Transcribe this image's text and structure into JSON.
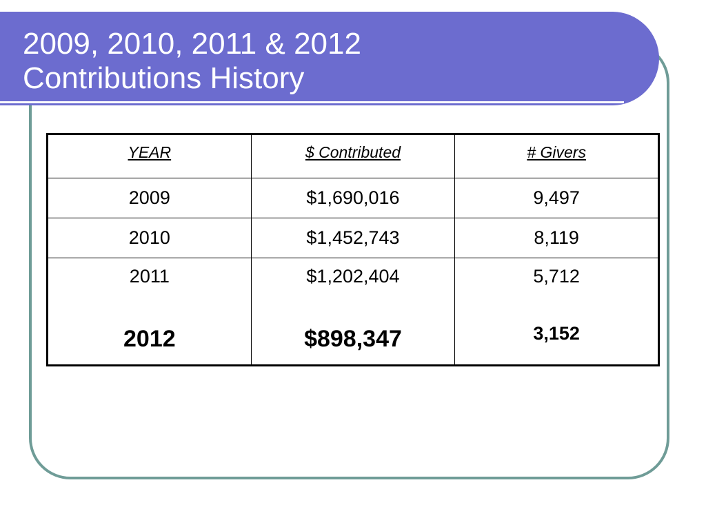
{
  "title": {
    "line1": "2009, 2010, 2011 & 2012",
    "line2": "Contributions History"
  },
  "table": {
    "headers": [
      "YEAR",
      "$ Contributed",
      "# Givers"
    ],
    "rows": [
      [
        "2009",
        "$1,690,016",
        "9,497"
      ],
      [
        "2010",
        "$1,452,743",
        "8,119"
      ]
    ],
    "last_row": {
      "top": [
        "2011",
        "$1,202,404",
        "5,712"
      ],
      "bottom": [
        "2012",
        "$898,347",
        "3,152"
      ]
    }
  },
  "colors": {
    "banner": "#6c6ccf",
    "frame": "#6f9c97"
  }
}
